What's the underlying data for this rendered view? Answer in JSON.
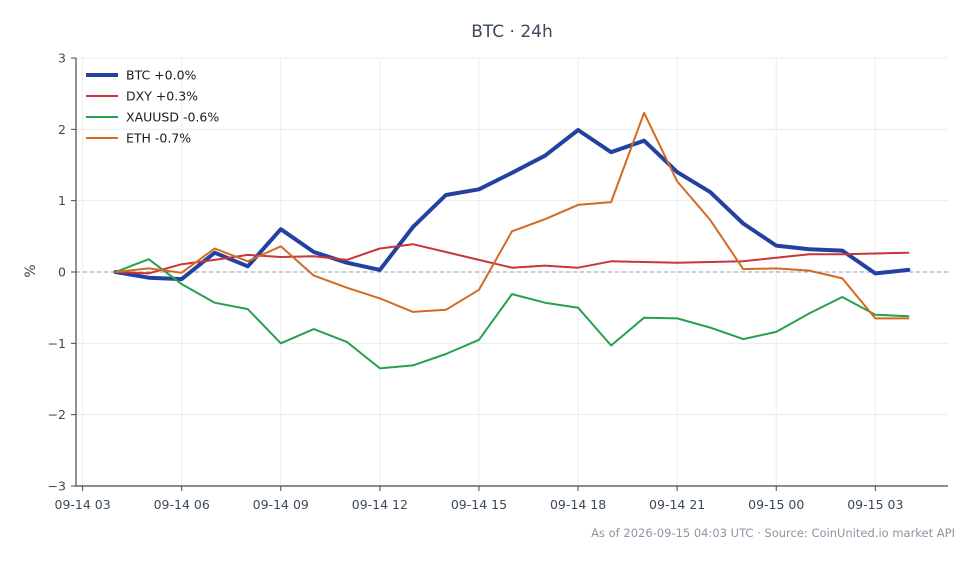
{
  "chart_data": {
    "type": "line",
    "title": "BTC · 24h",
    "xlabel": "",
    "ylabel": "%",
    "ylim": [
      -3,
      3
    ],
    "yticks": [
      3,
      2,
      1,
      0,
      -1,
      -2,
      -3
    ],
    "ytick_labels": [
      "3",
      "2",
      "1",
      "0",
      "−1",
      "−2",
      "−3"
    ],
    "xlim": [
      2.8,
      29.2
    ],
    "xtick_values": [
      3,
      6,
      9,
      12,
      15,
      18,
      21,
      24,
      27
    ],
    "xtick_labels": [
      "09-14 03",
      "09-14 06",
      "09-14 09",
      "09-14 12",
      "09-14 15",
      "09-14 18",
      "09-14 21",
      "09-15 00",
      "09-15 03"
    ],
    "x": [
      4,
      5,
      6,
      7,
      8,
      9,
      10,
      11,
      12,
      13,
      14,
      15,
      16,
      17,
      18,
      19,
      20,
      21,
      22,
      23,
      24,
      25,
      26,
      27,
      28
    ],
    "grid": true,
    "baseline": 0,
    "legend_position": "top-left",
    "series": [
      {
        "name": "BTC +0.0%",
        "color": "#2341a0",
        "width": 4,
        "values": [
          0.0,
          -0.08,
          -0.1,
          0.27,
          0.08,
          0.6,
          0.28,
          0.13,
          0.03,
          0.63,
          1.08,
          1.16,
          1.39,
          1.63,
          1.99,
          1.68,
          1.84,
          1.4,
          1.12,
          0.68,
          0.37,
          0.32,
          0.3,
          -0.02,
          0.03
        ]
      },
      {
        "name": "DXY +0.3%",
        "color": "#c8353a",
        "width": 2,
        "values": [
          0.0,
          -0.02,
          0.11,
          0.17,
          0.24,
          0.21,
          0.22,
          0.17,
          0.33,
          0.39,
          0.28,
          0.17,
          0.06,
          0.09,
          0.06,
          0.15,
          0.14,
          0.13,
          0.14,
          0.15,
          0.2,
          0.25,
          0.25,
          0.26,
          0.27
        ]
      },
      {
        "name": "XAUUSD -0.6%",
        "color": "#27a04e",
        "width": 2,
        "values": [
          0.0,
          0.18,
          -0.17,
          -0.43,
          -0.52,
          -1.0,
          -0.8,
          -0.98,
          -1.35,
          -1.31,
          -1.15,
          -0.95,
          -0.31,
          -0.43,
          -0.5,
          -1.03,
          -0.64,
          -0.65,
          -0.78,
          -0.94,
          -0.84,
          -0.58,
          -0.35,
          -0.6,
          -0.62
        ]
      },
      {
        "name": "ETH -0.7%",
        "color": "#d46a22",
        "width": 2,
        "values": [
          0.0,
          0.05,
          -0.01,
          0.33,
          0.15,
          0.36,
          -0.05,
          -0.22,
          -0.37,
          -0.56,
          -0.53,
          -0.25,
          0.57,
          0.74,
          0.94,
          0.98,
          2.23,
          1.27,
          0.73,
          0.04,
          0.05,
          0.02,
          -0.09,
          -0.65,
          -0.65
        ]
      }
    ]
  },
  "footer": {
    "note": "As of 2026-09-15 04:03 UTC · Source: CoinUnited.io market API"
  },
  "colors": {
    "axis": "#3a4a5a",
    "grid": "#ececec",
    "baseline": "#8a9bb0"
  }
}
